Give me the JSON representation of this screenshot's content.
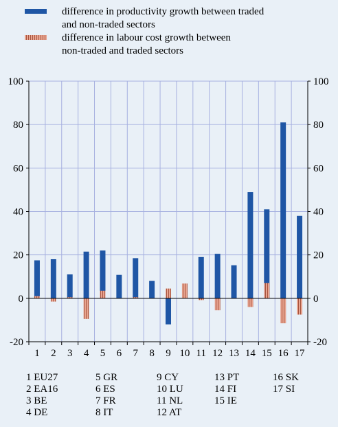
{
  "colors": {
    "background": "#e9f0f7",
    "productivity": "#1f56a5",
    "labour": "#e8a591",
    "labour_stripe": "#a8553f",
    "grid": "#a6b0e0"
  },
  "legend": {
    "items": [
      {
        "label": "difference in productivity growth between traded and non-traded sectors",
        "line1": "difference in productivity growth between traded",
        "line2": "and non-traded sectors"
      },
      {
        "label": "difference in labour cost growth between non-traded and traded sectors",
        "line1": "difference in labour cost growth between",
        "line2": "non-traded and traded sectors"
      }
    ]
  },
  "chart_data": {
    "type": "bar",
    "categories": [
      "1",
      "2",
      "3",
      "4",
      "5",
      "6",
      "7",
      "8",
      "9",
      "10",
      "11",
      "12",
      "13",
      "14",
      "15",
      "16",
      "17"
    ],
    "series": [
      {
        "name": "difference in productivity growth between traded and non-traded sectors",
        "values": [
          17.5,
          18,
          11,
          21.5,
          22,
          10.8,
          18.5,
          8,
          -12,
          0,
          19,
          20.5,
          15.2,
          49,
          41,
          81,
          38
        ]
      },
      {
        "name": "difference in labour cost growth between non-traded and traded sectors",
        "values": [
          1,
          -1.5,
          0.5,
          -9.5,
          3.5,
          0,
          0.5,
          0,
          4.5,
          6.8,
          -0.8,
          -5.5,
          0,
          -4,
          7,
          -11.5,
          -7.5
        ]
      }
    ],
    "ylim": [
      -20,
      100
    ],
    "yticks": [
      "-20",
      "0",
      "20",
      "40",
      "60",
      "80",
      "100"
    ],
    "grid": true,
    "right_axis": true
  },
  "country_key": {
    "columns": [
      [
        "1 EU27",
        "2 EA16",
        "3 BE",
        "4 DE"
      ],
      [
        "5 GR",
        "6 ES",
        "7 FR",
        "8 IT"
      ],
      [
        "9 CY",
        "10 LU",
        "11 NL",
        "12 AT"
      ],
      [
        "13 PT",
        "14 FI",
        "15 IE"
      ],
      [
        "16 SK",
        "17 SI"
      ]
    ]
  }
}
